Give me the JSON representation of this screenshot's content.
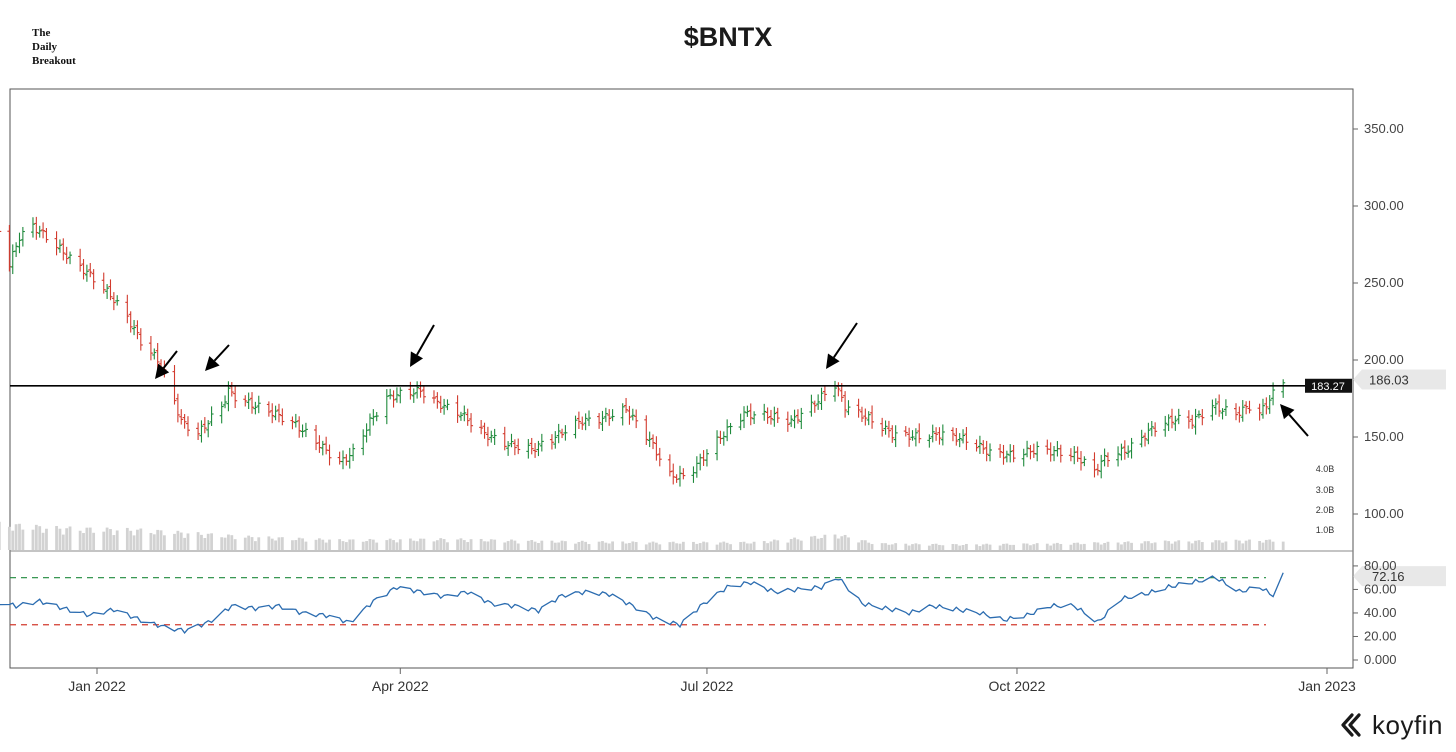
{
  "brand": {
    "line1": "The",
    "line2": "Daily",
    "line3": "Breakout"
  },
  "logo": {
    "text": "koyfin",
    "icon": "koyfin-chevron-icon"
  },
  "chart_data": {
    "type": "bar",
    "title": "$BNTX",
    "price_axis": {
      "ticks": [
        "350.00",
        "300.00",
        "250.00",
        "200.00",
        "150.00",
        "100.00"
      ],
      "values": [
        350,
        300,
        250,
        200,
        150,
        100
      ]
    },
    "volume_axis": {
      "ticks": [
        "4.0B",
        "3.0B",
        "2.0B",
        "1.0B"
      ]
    },
    "rsi_axis": {
      "ticks": [
        "80.00",
        "60.00",
        "40.00",
        "20.00",
        "0.000"
      ],
      "values": [
        80,
        60,
        40,
        20,
        0
      ],
      "overbought": 70,
      "oversold": 30
    },
    "x_ticks": [
      "Jan 2022",
      "Apr 2022",
      "Jul 2022",
      "Oct 2022",
      "Jan 2023"
    ],
    "resistance": {
      "value": 183.27,
      "label": "183.27"
    },
    "last_price": {
      "value": 186.03,
      "label": "186.03"
    },
    "last_rsi": {
      "value": 72.16,
      "label": "72.16"
    },
    "price_path": [
      [
        "2021-12-01",
        305
      ],
      [
        "2021-12-03",
        285
      ],
      [
        "2021-12-06",
        262
      ],
      [
        "2021-12-09",
        280
      ],
      [
        "2021-12-13",
        287
      ],
      [
        "2021-12-17",
        280
      ],
      [
        "2021-12-23",
        268
      ],
      [
        "2021-12-30",
        255
      ],
      [
        "2022-01-05",
        242
      ],
      [
        "2022-01-10",
        228
      ],
      [
        "2022-01-14",
        212
      ],
      [
        "2022-01-19",
        200
      ],
      [
        "2022-01-22",
        187
      ],
      [
        "2022-01-26",
        160
      ],
      [
        "2022-01-31",
        152
      ],
      [
        "2022-02-03",
        160
      ],
      [
        "2022-02-07",
        170
      ],
      [
        "2022-02-09",
        180
      ],
      [
        "2022-02-11",
        176
      ],
      [
        "2022-02-15",
        172
      ],
      [
        "2022-02-22",
        166
      ],
      [
        "2022-03-01",
        158
      ],
      [
        "2022-03-08",
        145
      ],
      [
        "2022-03-14",
        133
      ],
      [
        "2022-03-18",
        140
      ],
      [
        "2022-03-23",
        160
      ],
      [
        "2022-03-28",
        175
      ],
      [
        "2022-04-01",
        178
      ],
      [
        "2022-04-07",
        180
      ],
      [
        "2022-04-12",
        172
      ],
      [
        "2022-04-19",
        165
      ],
      [
        "2022-04-26",
        152
      ],
      [
        "2022-05-03",
        145
      ],
      [
        "2022-05-10",
        142
      ],
      [
        "2022-05-17",
        150
      ],
      [
        "2022-05-24",
        160
      ],
      [
        "2022-05-31",
        162
      ],
      [
        "2022-06-07",
        168
      ],
      [
        "2022-06-14",
        148
      ],
      [
        "2022-06-20",
        125
      ],
      [
        "2022-06-25",
        124
      ],
      [
        "2022-06-28",
        132
      ],
      [
        "2022-07-05",
        150
      ],
      [
        "2022-07-12",
        165
      ],
      [
        "2022-07-19",
        164
      ],
      [
        "2022-07-26",
        160
      ],
      [
        "2022-08-02",
        172
      ],
      [
        "2022-08-08",
        184
      ],
      [
        "2022-08-11",
        170
      ],
      [
        "2022-08-18",
        162
      ],
      [
        "2022-08-25",
        152
      ],
      [
        "2022-09-02",
        150
      ],
      [
        "2022-09-09",
        152
      ],
      [
        "2022-09-16",
        148
      ],
      [
        "2022-09-23",
        140
      ],
      [
        "2022-09-30",
        138
      ],
      [
        "2022-10-07",
        142
      ],
      [
        "2022-10-14",
        140
      ],
      [
        "2022-10-19",
        137
      ],
      [
        "2022-10-24",
        128
      ],
      [
        "2022-10-27",
        136
      ],
      [
        "2022-11-03",
        142
      ],
      [
        "2022-11-10",
        155
      ],
      [
        "2022-11-17",
        162
      ],
      [
        "2022-11-22",
        160
      ],
      [
        "2022-11-28",
        170
      ],
      [
        "2022-12-05",
        165
      ],
      [
        "2022-12-09",
        170
      ],
      [
        "2022-12-12",
        165
      ],
      [
        "2022-12-16",
        178
      ],
      [
        "2022-12-19",
        186.03
      ]
    ],
    "volume_path": [
      [
        "2021-12-01",
        1.2
      ],
      [
        "2021-12-20",
        1.0
      ],
      [
        "2022-01-15",
        0.9
      ],
      [
        "2022-02-15",
        0.6
      ],
      [
        "2022-03-15",
        0.45
      ],
      [
        "2022-04-15",
        0.5
      ],
      [
        "2022-05-15",
        0.4
      ],
      [
        "2022-06-15",
        0.35
      ],
      [
        "2022-07-15",
        0.35
      ],
      [
        "2022-08-09",
        0.7
      ],
      [
        "2022-08-20",
        0.3
      ],
      [
        "2022-09-15",
        0.25
      ],
      [
        "2022-10-15",
        0.3
      ],
      [
        "2022-11-15",
        0.4
      ],
      [
        "2022-12-19",
        0.45
      ]
    ],
    "rsi_path": [
      [
        "2021-12-01",
        50
      ],
      [
        "2021-12-08",
        46
      ],
      [
        "2021-12-15",
        50
      ],
      [
        "2021-12-22",
        44
      ],
      [
        "2021-12-30",
        38
      ],
      [
        "2022-01-06",
        43
      ],
      [
        "2022-01-14",
        34
      ],
      [
        "2022-01-21",
        28
      ],
      [
        "2022-01-27",
        25
      ],
      [
        "2022-02-03",
        32
      ],
      [
        "2022-02-10",
        46
      ],
      [
        "2022-02-17",
        44
      ],
      [
        "2022-02-24",
        46
      ],
      [
        "2022-03-03",
        40
      ],
      [
        "2022-03-10",
        38
      ],
      [
        "2022-03-17",
        32
      ],
      [
        "2022-03-24",
        50
      ],
      [
        "2022-03-31",
        62
      ],
      [
        "2022-04-07",
        58
      ],
      [
        "2022-04-14",
        54
      ],
      [
        "2022-04-21",
        58
      ],
      [
        "2022-04-28",
        48
      ],
      [
        "2022-05-05",
        46
      ],
      [
        "2022-05-12",
        42
      ],
      [
        "2022-05-19",
        55
      ],
      [
        "2022-05-26",
        58
      ],
      [
        "2022-06-02",
        56
      ],
      [
        "2022-06-09",
        46
      ],
      [
        "2022-06-16",
        35
      ],
      [
        "2022-06-23",
        30
      ],
      [
        "2022-06-30",
        48
      ],
      [
        "2022-07-07",
        62
      ],
      [
        "2022-07-14",
        66
      ],
      [
        "2022-07-21",
        58
      ],
      [
        "2022-07-28",
        60
      ],
      [
        "2022-08-04",
        62
      ],
      [
        "2022-08-09",
        70
      ],
      [
        "2022-08-16",
        48
      ],
      [
        "2022-08-23",
        44
      ],
      [
        "2022-08-30",
        40
      ],
      [
        "2022-09-06",
        46
      ],
      [
        "2022-09-13",
        43
      ],
      [
        "2022-09-20",
        40
      ],
      [
        "2022-09-27",
        34
      ],
      [
        "2022-10-04",
        38
      ],
      [
        "2022-10-11",
        46
      ],
      [
        "2022-10-18",
        46
      ],
      [
        "2022-10-25",
        32
      ],
      [
        "2022-11-01",
        52
      ],
      [
        "2022-11-08",
        56
      ],
      [
        "2022-11-15",
        62
      ],
      [
        "2022-11-22",
        66
      ],
      [
        "2022-11-29",
        70
      ],
      [
        "2022-12-06",
        58
      ],
      [
        "2022-12-12",
        62
      ],
      [
        "2022-12-16",
        55
      ],
      [
        "2022-12-19",
        72.16
      ]
    ]
  }
}
